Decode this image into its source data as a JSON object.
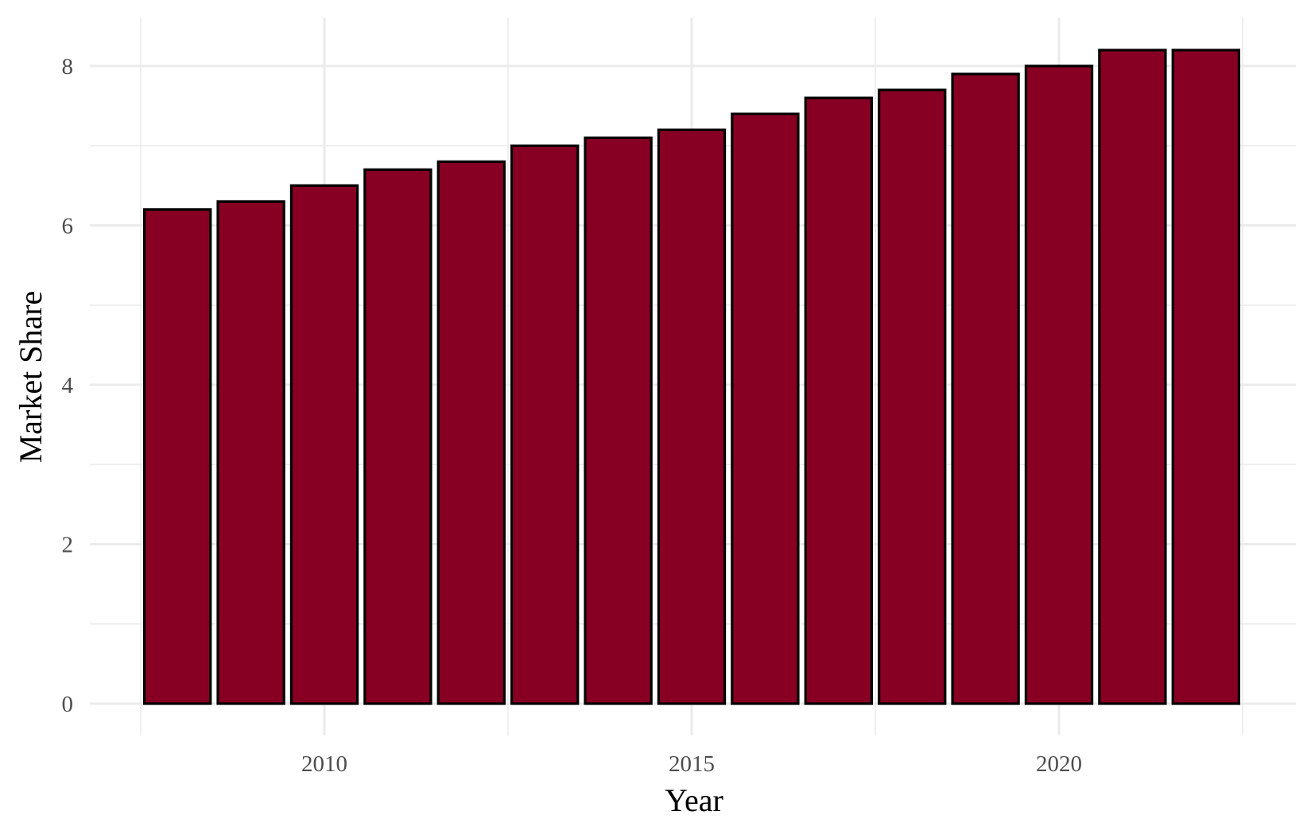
{
  "chart_data": {
    "type": "bar",
    "xlabel": "Year",
    "ylabel": "Market Share",
    "categories": [
      "2008",
      "2009",
      "2010",
      "2011",
      "2012",
      "2013",
      "2014",
      "2015",
      "2016",
      "2017",
      "2018",
      "2019",
      "2020",
      "2021",
      "2022"
    ],
    "x": [
      2008,
      2009,
      2010,
      2011,
      2012,
      2013,
      2014,
      2015,
      2016,
      2017,
      2018,
      2019,
      2020,
      2021,
      2022
    ],
    "values": [
      6.2,
      6.3,
      6.5,
      6.7,
      6.8,
      7.0,
      7.1,
      7.2,
      7.4,
      7.6,
      7.7,
      7.9,
      8.0,
      8.2,
      8.2
    ],
    "xlim": [
      2007.5,
      2022.5
    ],
    "ylim": [
      0,
      8.2
    ],
    "x_ticks": [
      2010,
      2015,
      2020
    ],
    "x_tick_labels": [
      "2010",
      "2015",
      "2020"
    ],
    "y_ticks": [
      0,
      2,
      4,
      6,
      8
    ],
    "y_tick_labels": [
      "0",
      "2",
      "4",
      "6",
      "8"
    ],
    "grid": true,
    "legend": "none",
    "colors": {
      "bar_fill": "#870024",
      "bar_outline": "#000000",
      "grid": "#ebebeb",
      "tick_text": "#4d4d4d",
      "title_text": "#000000"
    }
  }
}
